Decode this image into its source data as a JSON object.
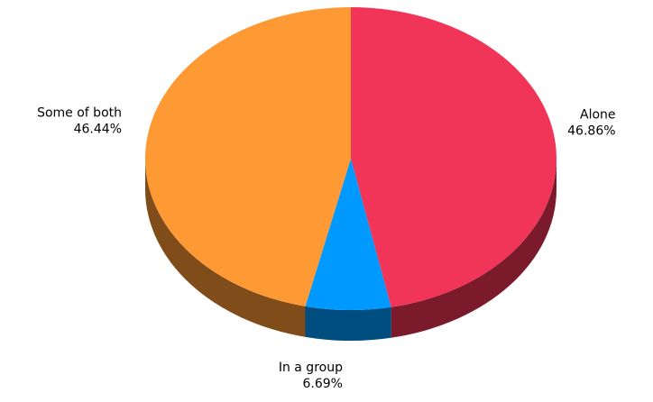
{
  "chart_data": {
    "type": "pie",
    "style": "3d",
    "start_angle": "12 o'clock",
    "direction": "clockwise",
    "slices": [
      {
        "label": "Alone",
        "percent_label": "46.86%",
        "value": 46.86,
        "color": "#f03558",
        "side_color": "#7a1a2b"
      },
      {
        "label": "In a group",
        "percent_label": "6.69%",
        "value": 6.69,
        "color": "#0099ff",
        "side_color": "#004d80"
      },
      {
        "label": "Some of both",
        "percent_label": "46.44%",
        "value": 46.44,
        "color": "#ff9933",
        "side_color": "#7f4c1a"
      }
    ]
  }
}
